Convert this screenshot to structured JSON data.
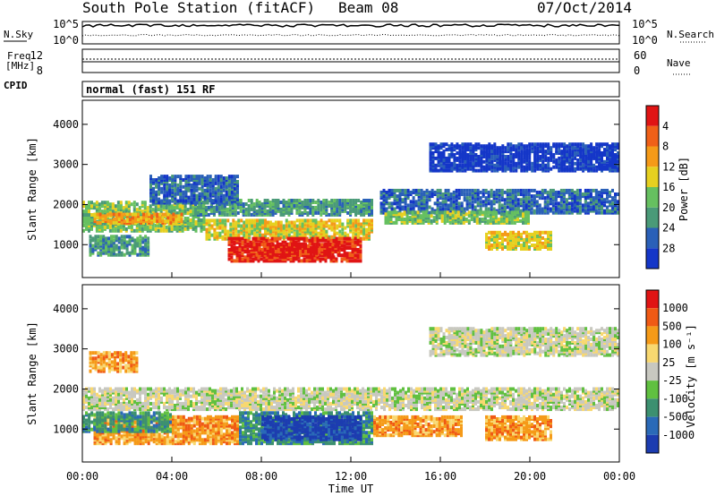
{
  "header": {
    "station": "South Pole Station (fitACF)",
    "beam": "Beam 08",
    "date": "07/Oct/2014"
  },
  "params": {
    "nsky_label": "N.Sky",
    "nsearch_label": "N.Search",
    "freq_label_1": "Freq.",
    "freq_label_2": "[MHz]",
    "nave_label": "Nave",
    "cpid_label": "CPID",
    "cpid_text": "normal (fast) 151 RF",
    "left_ticks_noise": [
      "10^5",
      "10^0"
    ],
    "right_ticks_noise": [
      "10^5",
      "10^0"
    ],
    "left_ticks_freq": [
      "12",
      "8"
    ],
    "right_ticks_nave": [
      "60",
      "0"
    ]
  },
  "chart_data": [
    {
      "type": "heatmap",
      "panel": "power",
      "ylabel": "Slant Range [km]",
      "xlabel": "Time UT",
      "x_ticks": [
        "00:00",
        "04:00",
        "08:00",
        "12:00",
        "16:00",
        "20:00",
        "00:00"
      ],
      "y_ticks": [
        1000,
        2000,
        3000,
        4000
      ],
      "ylim": [
        180,
        4600
      ],
      "xlim_hours": [
        0,
        24
      ],
      "colorbar_label": "Power [dB]",
      "colorbar_ticks": [
        "4",
        "8",
        "12",
        "16",
        "20",
        "24",
        "28"
      ],
      "colorbar_colors": [
        "#1436c8",
        "#2a60b8",
        "#4a9a78",
        "#66c060",
        "#e6d020",
        "#f59a18",
        "#f06018",
        "#e01414"
      ],
      "bands": [
        {
          "t0": 0.0,
          "t1": 5.5,
          "r_lo": 1300,
          "r_hi": 2050,
          "level": 3
        },
        {
          "t0": 0.5,
          "t1": 4.5,
          "r_lo": 1500,
          "r_hi": 1750,
          "level": 5
        },
        {
          "t0": 5.0,
          "t1": 13.0,
          "r_lo": 1700,
          "r_hi": 2100,
          "level": 2
        },
        {
          "t0": 5.5,
          "t1": 13.0,
          "r_lo": 1100,
          "r_hi": 1600,
          "level": 4
        },
        {
          "t0": 6.5,
          "t1": 12.5,
          "r_lo": 550,
          "r_hi": 1150,
          "level": 7
        },
        {
          "t0": 7.5,
          "t1": 11.5,
          "r_lo": 700,
          "r_hi": 1000,
          "level": 7
        },
        {
          "t0": 13.3,
          "t1": 24.0,
          "r_lo": 1750,
          "r_hi": 2350,
          "level": 1
        },
        {
          "t0": 13.5,
          "t1": 20.0,
          "r_lo": 1500,
          "r_hi": 1800,
          "level": 3
        },
        {
          "t0": 18.0,
          "t1": 21.0,
          "r_lo": 850,
          "r_hi": 1300,
          "level": 4
        },
        {
          "t0": 15.5,
          "t1": 24.0,
          "r_lo": 2800,
          "r_hi": 3500,
          "level": 0
        },
        {
          "t0": 0.3,
          "t1": 3.0,
          "r_lo": 700,
          "r_hi": 1200,
          "level": 2
        },
        {
          "t0": 3.0,
          "t1": 7.0,
          "r_lo": 2000,
          "r_hi": 2700,
          "level": 1
        }
      ]
    },
    {
      "type": "heatmap",
      "panel": "velocity",
      "ylabel": "Slant Range [km]",
      "xlabel": "Time UT",
      "x_ticks": [
        "00:00",
        "04:00",
        "08:00",
        "12:00",
        "16:00",
        "20:00",
        "00:00"
      ],
      "y_ticks": [
        1000,
        2000,
        3000,
        4000
      ],
      "ylim": [
        180,
        4600
      ],
      "xlim_hours": [
        0,
        24
      ],
      "colorbar_label": "Velocity [m s⁻¹]",
      "colorbar_ticks": [
        "1000",
        "500",
        "100",
        "25",
        "-25",
        "-100",
        "-500",
        "-1000"
      ],
      "colorbar_colors": [
        "#1c3cb0",
        "#2a6ab8",
        "#3c9070",
        "#60c040",
        "#c8c8c0",
        "#f8d870",
        "#f59a18",
        "#f05a14",
        "#e01414"
      ],
      "bands": [
        {
          "t0": 0.0,
          "t1": 24.0,
          "r_lo": 1450,
          "r_hi": 2000,
          "level": 4
        },
        {
          "t0": 0.5,
          "t1": 7.0,
          "r_lo": 600,
          "r_hi": 1300,
          "level": 6
        },
        {
          "t0": 0.0,
          "t1": 4.0,
          "r_lo": 900,
          "r_hi": 1400,
          "level": 2
        },
        {
          "t0": 7.0,
          "t1": 13.0,
          "r_lo": 600,
          "r_hi": 1400,
          "level": 2
        },
        {
          "t0": 8.0,
          "t1": 12.5,
          "r_lo": 700,
          "r_hi": 1300,
          "level": 0
        },
        {
          "t0": 13.0,
          "t1": 17.0,
          "r_lo": 800,
          "r_hi": 1300,
          "level": 6
        },
        {
          "t0": 18.0,
          "t1": 21.0,
          "r_lo": 700,
          "r_hi": 1300,
          "level": 6
        },
        {
          "t0": 15.5,
          "t1": 24.0,
          "r_lo": 2800,
          "r_hi": 3500,
          "level": 4
        },
        {
          "t0": 0.3,
          "t1": 2.5,
          "r_lo": 2400,
          "r_hi": 2900,
          "level": 6
        }
      ]
    }
  ]
}
